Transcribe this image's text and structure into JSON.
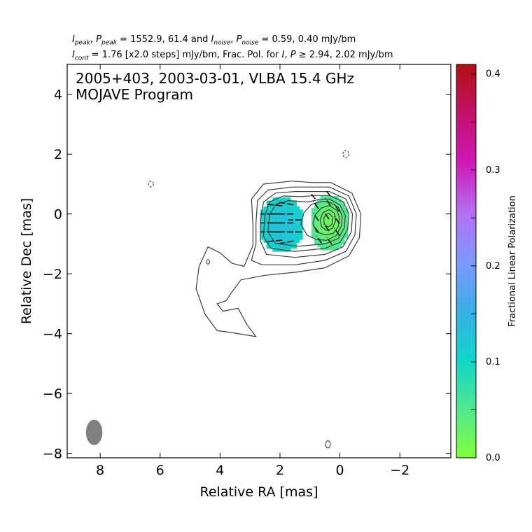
{
  "header": {
    "line1": {
      "a": "I",
      "a_sub": "peak",
      "b": ", ",
      "c": "P",
      "c_sub": "peak",
      "d": " = 1552.9, 61.4 and ",
      "e": "I",
      "e_sub": "noise",
      "f": ", ",
      "g": "P",
      "g_sub": "noise",
      "h": " = 0.59, 0.40 mJy/bm"
    },
    "line2": {
      "a": "I",
      "a_sub": "cont",
      "b": " = 1.76 [x2.0 steps] mJy/bm, Frac. Pol. for ",
      "c": "I",
      "d": ", ",
      "e": "P",
      "f": " ≥ 2.94, 2.02 mJy/bm"
    }
  },
  "chart_data": {
    "type": "contour-polarization-map",
    "annotation": [
      "2005+403, 2003-03-01, VLBA 15.4 GHz",
      "MOJAVE Program"
    ],
    "xlabel": "Relative RA [mas]",
    "ylabel": "Relative Dec [mas]",
    "xlim": [
      9.1,
      -3.7
    ],
    "ylim": [
      -8.15,
      5.0
    ],
    "xticks": [
      8,
      6,
      4,
      2,
      0,
      -2
    ],
    "xtick_labels": [
      "8",
      "6",
      "4",
      "2",
      "0",
      "−2"
    ],
    "yticks": [
      4,
      2,
      0,
      -2,
      -4,
      -6,
      -8
    ],
    "ytick_labels": [
      "4",
      "2",
      "0",
      "−2",
      "−4",
      "−6",
      "−8"
    ],
    "colorbar": {
      "label": "Fractional Linear Polarization",
      "range": [
        0.0,
        0.41
      ],
      "ticks": [
        0.0,
        0.1,
        0.2,
        0.3,
        0.4
      ],
      "tick_labels": [
        "0.0",
        "0.1",
        "0.2",
        "0.3",
        "0.4"
      ],
      "colors": [
        "#80ff3a",
        "#4fe890",
        "#0fd6c8",
        "#3aaee8",
        "#7e98ff",
        "#b56ef2",
        "#d018b8",
        "#c4106a",
        "#b01010"
      ]
    },
    "core": {
      "ra": 0.35,
      "dec": -0.3
    },
    "jet_knot": {
      "ra": 1.95,
      "dec": -0.35
    },
    "contours": [
      {
        "level": 1,
        "points": [
          [
            0.3,
            1.05
          ],
          [
            -0.4,
            0.7
          ],
          [
            -0.7,
            0.0
          ],
          [
            -0.65,
            -0.8
          ],
          [
            -0.3,
            -1.4
          ],
          [
            0.5,
            -1.8
          ],
          [
            1.5,
            -1.95
          ],
          [
            2.5,
            -2.05
          ],
          [
            3.3,
            -2.2
          ],
          [
            3.6,
            -2.6
          ],
          [
            3.8,
            -2.9
          ],
          [
            4.1,
            -3.0
          ],
          [
            3.9,
            -3.25
          ],
          [
            3.4,
            -3.15
          ],
          [
            3.1,
            -3.7
          ],
          [
            2.8,
            -4.1
          ],
          [
            3.7,
            -3.95
          ],
          [
            4.1,
            -3.9
          ],
          [
            4.5,
            -3.35
          ],
          [
            4.8,
            -2.5
          ],
          [
            4.7,
            -1.75
          ],
          [
            4.4,
            -1.1
          ],
          [
            4.0,
            -1.3
          ],
          [
            3.6,
            -1.65
          ],
          [
            3.2,
            -1.75
          ],
          [
            2.9,
            -1.05
          ],
          [
            2.9,
            -0.4
          ],
          [
            2.95,
            0.5
          ],
          [
            2.55,
            1.0
          ],
          [
            1.6,
            1.1
          ],
          [
            0.9,
            1.05
          ],
          [
            0.3,
            1.05
          ]
        ]
      },
      {
        "level": 2,
        "points": [
          [
            0.35,
            0.9
          ],
          [
            -0.3,
            0.6
          ],
          [
            -0.55,
            0.0
          ],
          [
            -0.5,
            -0.7
          ],
          [
            -0.2,
            -1.25
          ],
          [
            0.5,
            -1.55
          ],
          [
            1.5,
            -1.7
          ],
          [
            2.6,
            -1.7
          ],
          [
            2.95,
            -1.55
          ],
          [
            2.8,
            -1.0
          ],
          [
            2.8,
            -0.3
          ],
          [
            2.75,
            0.45
          ],
          [
            2.4,
            0.8
          ],
          [
            1.6,
            0.9
          ],
          [
            0.9,
            0.9
          ],
          [
            0.35,
            0.9
          ]
        ]
      },
      {
        "level": 3,
        "points": [
          [
            0.35,
            0.75
          ],
          [
            -0.2,
            0.5
          ],
          [
            -0.42,
            0.0
          ],
          [
            -0.38,
            -0.6
          ],
          [
            -0.1,
            -1.1
          ],
          [
            0.5,
            -1.35
          ],
          [
            1.5,
            -1.45
          ],
          [
            2.45,
            -1.35
          ],
          [
            2.65,
            -0.9
          ],
          [
            2.65,
            -0.2
          ],
          [
            2.55,
            0.4
          ],
          [
            2.15,
            0.7
          ],
          [
            1.5,
            0.75
          ],
          [
            0.9,
            0.75
          ],
          [
            0.35,
            0.75
          ]
        ]
      },
      {
        "level": 4,
        "points": [
          [
            0.35,
            0.62
          ],
          [
            -0.12,
            0.4
          ],
          [
            -0.3,
            0.0
          ],
          [
            -0.26,
            -0.52
          ],
          [
            0.0,
            -0.95
          ],
          [
            0.5,
            -1.15
          ],
          [
            1.5,
            -1.25
          ],
          [
            2.3,
            -1.15
          ],
          [
            2.55,
            -0.75
          ],
          [
            2.5,
            -0.05
          ],
          [
            2.35,
            0.4
          ],
          [
            1.9,
            0.6
          ],
          [
            1.3,
            0.58
          ],
          [
            0.8,
            0.62
          ],
          [
            0.35,
            0.62
          ]
        ]
      },
      {
        "level": 5,
        "points": [
          [
            0.35,
            0.5
          ],
          [
            0.0,
            0.3
          ],
          [
            -0.18,
            -0.05
          ],
          [
            -0.15,
            -0.45
          ],
          [
            0.05,
            -0.82
          ],
          [
            0.5,
            -1.0
          ],
          [
            1.4,
            -1.08
          ],
          [
            2.15,
            -0.98
          ],
          [
            2.4,
            -0.6
          ],
          [
            2.35,
            -0.05
          ],
          [
            2.15,
            0.32
          ],
          [
            1.7,
            0.45
          ],
          [
            1.1,
            0.4
          ],
          [
            0.7,
            0.48
          ],
          [
            0.35,
            0.5
          ]
        ]
      },
      {
        "level": 6,
        "points": [
          [
            0.35,
            0.4
          ],
          [
            0.05,
            0.22
          ],
          [
            -0.08,
            -0.08
          ],
          [
            -0.05,
            -0.4
          ],
          [
            0.12,
            -0.72
          ],
          [
            0.45,
            -0.88
          ],
          [
            0.8,
            -0.85
          ],
          [
            1.1,
            -0.7
          ],
          [
            1.3,
            -0.35
          ],
          [
            1.2,
            0.05
          ],
          [
            0.95,
            0.32
          ],
          [
            0.6,
            0.42
          ],
          [
            0.35,
            0.4
          ]
        ]
      },
      {
        "level": 7,
        "points": [
          [
            0.35,
            0.28
          ],
          [
            0.1,
            0.12
          ],
          [
            0.02,
            -0.12
          ],
          [
            0.05,
            -0.42
          ],
          [
            0.22,
            -0.65
          ],
          [
            0.5,
            -0.7
          ],
          [
            0.78,
            -0.6
          ],
          [
            0.9,
            -0.32
          ],
          [
            0.82,
            -0.02
          ],
          [
            0.62,
            0.2
          ],
          [
            0.35,
            0.28
          ]
        ]
      },
      {
        "level": 8,
        "points": [
          [
            0.35,
            0.15
          ],
          [
            0.18,
            0.02
          ],
          [
            0.14,
            -0.22
          ],
          [
            0.25,
            -0.48
          ],
          [
            0.45,
            -0.55
          ],
          [
            0.62,
            -0.42
          ],
          [
            0.66,
            -0.18
          ],
          [
            0.56,
            0.05
          ],
          [
            0.35,
            0.15
          ]
        ]
      },
      {
        "level": 9,
        "points": [
          [
            0.36,
            0.02
          ],
          [
            0.25,
            -0.1
          ],
          [
            0.26,
            -0.34
          ],
          [
            0.4,
            -0.44
          ],
          [
            0.52,
            -0.34
          ],
          [
            0.54,
            -0.14
          ],
          [
            0.45,
            -0.01
          ],
          [
            0.36,
            0.02
          ]
        ]
      }
    ],
    "dashed_islands": [
      {
        "ra": -0.2,
        "dec": 2.0,
        "r": 0.1
      },
      {
        "ra": 6.3,
        "dec": 1.0,
        "r": 0.08
      }
    ],
    "solid_islands": [
      {
        "ra": 0.4,
        "dec": -7.7,
        "r": 0.08
      },
      {
        "ra": 4.4,
        "dec": -1.6,
        "r": 0.05
      }
    ],
    "beam": {
      "ra": 8.2,
      "dec": -7.3,
      "major_mas": 0.85,
      "minor_mas": 0.55,
      "pa_deg": 0,
      "color": "#808080"
    },
    "pol_regions": [
      {
        "name": "jet-knot",
        "ra": 1.95,
        "dec": -0.35,
        "rx": 0.75,
        "ry": 0.95,
        "fp_center": 0.13,
        "fp_edge": 0.1
      },
      {
        "name": "core",
        "ra": 0.35,
        "dec": -0.3,
        "rx": 0.65,
        "ry": 0.95,
        "fp_center": 0.02,
        "fp_edge": 0.06
      }
    ],
    "evpa_vectors": [
      {
        "ra": 2.3,
        "dec": 0.0,
        "len": 0.7,
        "pa": 90
      },
      {
        "ra": 1.9,
        "dec": 0.0,
        "len": 0.7,
        "pa": 90
      },
      {
        "ra": 2.3,
        "dec": -0.3,
        "len": 0.7,
        "pa": 90
      },
      {
        "ra": 1.9,
        "dec": -0.3,
        "len": 0.7,
        "pa": 90
      },
      {
        "ra": 2.3,
        "dec": -0.6,
        "len": 0.7,
        "pa": 90
      },
      {
        "ra": 1.9,
        "dec": -0.6,
        "len": 0.7,
        "pa": 90
      },
      {
        "ra": 2.2,
        "dec": 0.3,
        "len": 0.55,
        "pa": 85
      },
      {
        "ra": 1.8,
        "dec": 0.35,
        "len": 0.5,
        "pa": 80
      },
      {
        "ra": 2.2,
        "dec": -0.9,
        "len": 0.55,
        "pa": 95
      },
      {
        "ra": 1.8,
        "dec": -0.95,
        "len": 0.5,
        "pa": 100
      },
      {
        "ra": 1.5,
        "dec": -0.2,
        "len": 0.45,
        "pa": 90
      },
      {
        "ra": 1.5,
        "dec": -0.6,
        "len": 0.45,
        "pa": 90
      },
      {
        "ra": 0.8,
        "dec": 0.3,
        "len": 0.3,
        "pa": 35
      },
      {
        "ra": 0.4,
        "dec": 0.4,
        "len": 0.3,
        "pa": 35
      },
      {
        "ra": 0.1,
        "dec": 0.2,
        "len": 0.3,
        "pa": 35
      },
      {
        "ra": 0.8,
        "dec": -0.1,
        "len": 0.3,
        "pa": 35
      },
      {
        "ra": 0.45,
        "dec": -0.05,
        "len": 0.3,
        "pa": 35
      },
      {
        "ra": 0.1,
        "dec": -0.2,
        "len": 0.3,
        "pa": 35
      },
      {
        "ra": 0.8,
        "dec": -0.5,
        "len": 0.3,
        "pa": 35
      },
      {
        "ra": 0.45,
        "dec": -0.45,
        "len": 0.3,
        "pa": 35
      },
      {
        "ra": 0.1,
        "dec": -0.6,
        "len": 0.3,
        "pa": 35
      },
      {
        "ra": 0.7,
        "dec": -0.85,
        "len": 0.3,
        "pa": 35
      },
      {
        "ra": 0.35,
        "dec": -0.9,
        "len": 0.3,
        "pa": 35
      },
      {
        "ra": 0.9,
        "dec": 0.6,
        "len": 0.25,
        "pa": 40
      },
      {
        "ra": 0.4,
        "dec": 0.7,
        "len": 0.25,
        "pa": 40
      }
    ]
  }
}
